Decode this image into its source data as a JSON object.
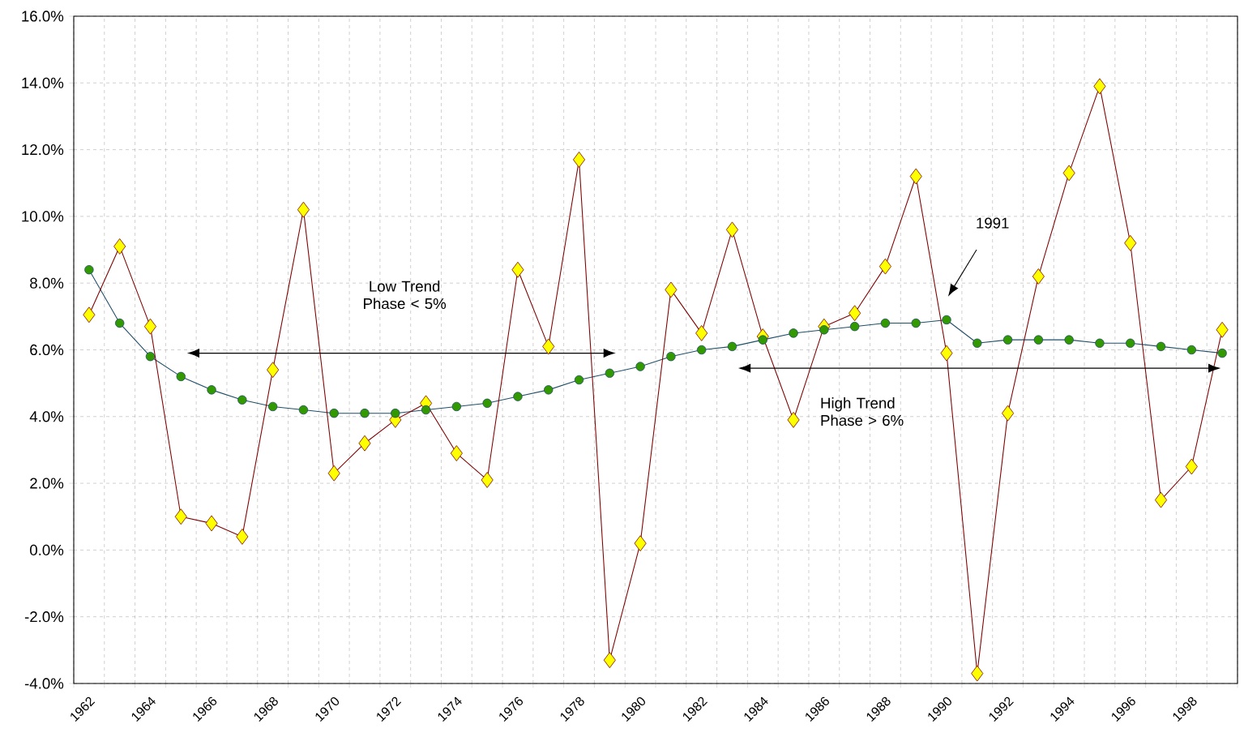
{
  "chart_data": {
    "type": "line",
    "categories": [
      "1962",
      null,
      "1964",
      null,
      "1966",
      null,
      "1968",
      null,
      "1970",
      null,
      "1972",
      null,
      "1974",
      null,
      "1976",
      null,
      "1978",
      null,
      "1980",
      null,
      "1982",
      null,
      "1984",
      null,
      "1986",
      null,
      "1988",
      null,
      "1990",
      null,
      "1992",
      null,
      "1994",
      null,
      "1996",
      null,
      "1998",
      null
    ],
    "series": [
      {
        "color": "#ffff00",
        "marker": "diamond",
        "values": [
          7.05,
          9.1,
          6.7,
          1.0,
          0.8,
          0.4,
          5.4,
          10.2,
          2.3,
          3.2,
          3.9,
          4.4,
          2.9,
          2.1,
          8.4,
          6.1,
          11.7,
          -3.3,
          0.2,
          7.8,
          6.5,
          9.6,
          6.4,
          3.9,
          6.7,
          7.1,
          8.5,
          11.2,
          5.9,
          -3.7,
          4.1,
          8.2,
          11.3,
          13.9,
          9.2,
          1.5,
          2.5,
          6.6
        ]
      },
      {
        "color": "#339900",
        "marker": "circle",
        "values": [
          8.4,
          6.8,
          5.8,
          5.2,
          4.8,
          4.5,
          4.3,
          4.2,
          4.1,
          4.1,
          4.1,
          4.2,
          4.3,
          4.4,
          4.6,
          4.8,
          5.1,
          5.3,
          5.5,
          5.8,
          6.0,
          6.1,
          6.3,
          6.5,
          6.6,
          6.7,
          6.8,
          6.8,
          6.9,
          6.2,
          6.3,
          6.3,
          6.3,
          6.2,
          6.2,
          6.1,
          6.0,
          5.9
        ]
      }
    ],
    "ylim": [
      -4,
      16
    ],
    "yticks": [
      {
        "value": -4,
        "label": "-4.0%"
      },
      {
        "value": -2,
        "label": "-2.0%"
      },
      {
        "value": 0,
        "label": "0.0%"
      },
      {
        "value": 2,
        "label": "2.0%"
      },
      {
        "value": 4,
        "label": "4.0%"
      },
      {
        "value": 6,
        "label": "6.0%"
      },
      {
        "value": 8,
        "label": "8.0%"
      },
      {
        "value": 10,
        "label": "10.0%"
      },
      {
        "value": 12,
        "label": "12.0%"
      },
      {
        "value": 14,
        "label": "14.0%"
      },
      {
        "value": 16,
        "label": "16.0%"
      }
    ],
    "grid": true,
    "line_style": "solid",
    "annotations": [
      "Low Trend Phase < 5%",
      "High Trend Phase > 6%",
      "1991"
    ]
  }
}
